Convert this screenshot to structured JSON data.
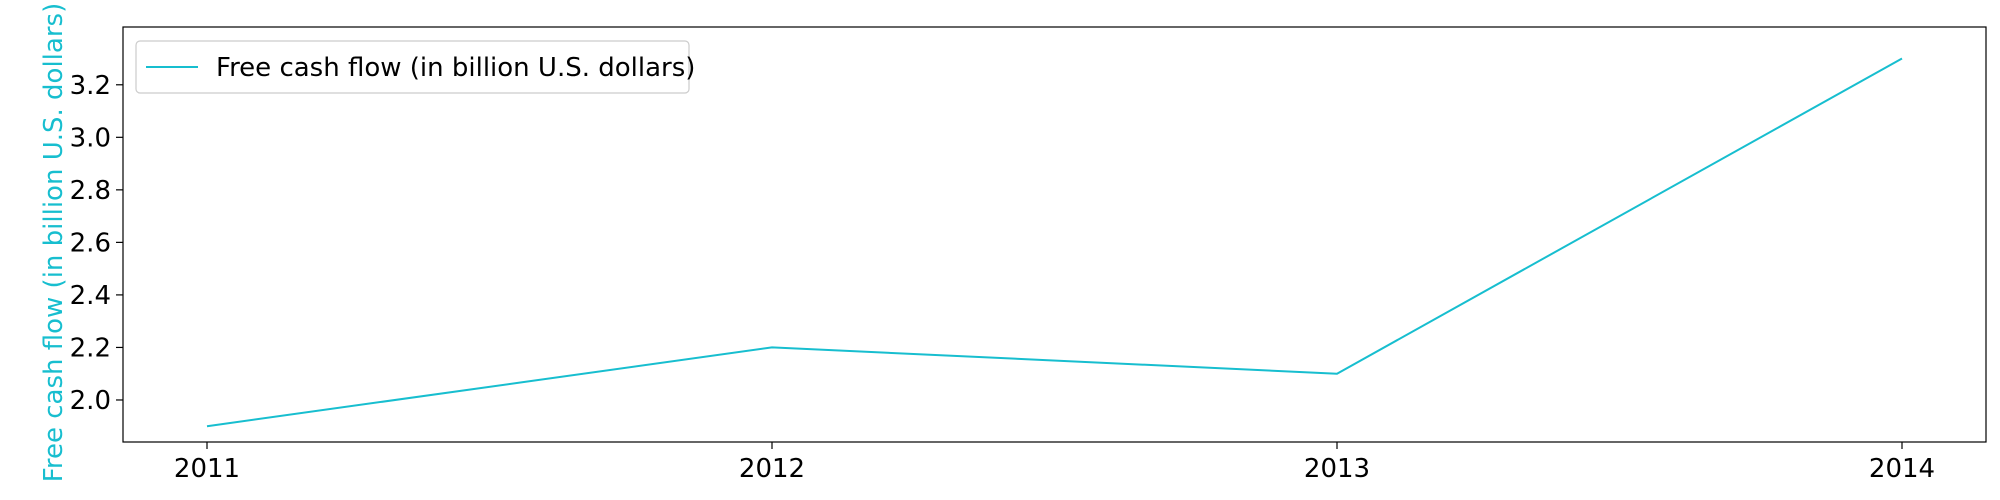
{
  "chart_data": {
    "type": "line",
    "x": [
      "2011",
      "2012",
      "2013",
      "2014"
    ],
    "series": [
      {
        "name": "Free cash flow (in billion U.S. dollars)",
        "values": [
          1.9,
          2.2,
          2.1,
          3.3
        ],
        "color": "#17becf"
      }
    ],
    "title": "",
    "xlabel": "",
    "ylabel": "Free cash flow (in billion U.S. dollars)",
    "ylabel_color": "#17becf",
    "ylim": [
      1.84,
      3.42
    ],
    "yticks": [
      2.0,
      2.2,
      2.4,
      2.6,
      2.8,
      3.0,
      3.2
    ],
    "ytick_labels": [
      "2.0",
      "2.2",
      "2.4",
      "2.6",
      "2.8",
      "3.0",
      "3.2"
    ],
    "grid": false,
    "legend_position": "top-left"
  }
}
